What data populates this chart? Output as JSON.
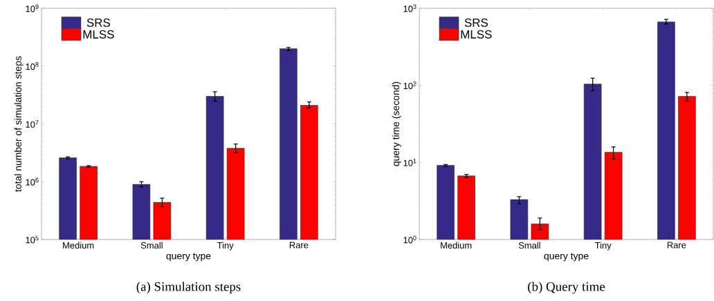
{
  "chart_data": [
    {
      "type": "bar",
      "title": "(a) Simulation steps",
      "xlabel": "query type",
      "ylabel": "total number of simulation steps",
      "categories": [
        "Medium",
        "Small",
        "Tiny",
        "Rare"
      ],
      "log": "y",
      "ylim": [
        100000,
        1000000000
      ],
      "yticks": [
        {
          "value": 100000,
          "label": "10$^{5}$"
        },
        {
          "value": 1000000,
          "label": "10$^{6}$"
        },
        {
          "value": 10000000,
          "label": "10$^{7}$"
        },
        {
          "value": 100000000,
          "label": "10$^{8}$"
        },
        {
          "value": 1000000000,
          "label": "10$^{9}$"
        }
      ],
      "legend": "top left",
      "series": [
        {
          "name": "SRS",
          "color": "#352a87",
          "values": [
            2600000,
            900000,
            30000000,
            200000000
          ],
          "errors": [
            [
              2500000,
              2700000
            ],
            [
              810000,
              1000000
            ],
            [
              24600000,
              36000000
            ],
            [
              185000000,
              210000000
            ]
          ]
        },
        {
          "name": "MLSS",
          "color": "#ff0000",
          "values": [
            1850000,
            440000,
            3800000,
            21000000
          ],
          "errors": [
            [
              1800000,
              1900000
            ],
            [
              370000,
              520000
            ],
            [
              3200000,
              4500000
            ],
            [
              19000000,
              24000000
            ]
          ]
        }
      ]
    },
    {
      "type": "bar",
      "title": "(b) Query time",
      "xlabel": "query type",
      "ylabel": "query time (second)",
      "categories": [
        "Medium",
        "Small",
        "Tiny",
        "Rare"
      ],
      "log": "y",
      "ylim": [
        1,
        1000
      ],
      "yticks": [
        {
          "value": 1,
          "label": "10$^{0}$"
        },
        {
          "value": 10,
          "label": "10$^{1}$"
        },
        {
          "value": 100,
          "label": "10$^{2}$"
        },
        {
          "value": 1000,
          "label": "10$^{3}$"
        }
      ],
      "legend": "top left",
      "series": [
        {
          "name": "SRS",
          "color": "#352a87",
          "values": [
            9.2,
            3.3,
            104,
            666
          ],
          "errors": [
            [
              8.9,
              9.4
            ],
            [
              2.9,
              3.6
            ],
            [
              85,
              124
            ],
            [
              626,
              718
            ]
          ]
        },
        {
          "name": "MLSS",
          "color": "#ff0000",
          "values": [
            6.7,
            1.6,
            13.6,
            72
          ],
          "errors": [
            [
              6.4,
              7.0
            ],
            [
              1.35,
              1.9
            ],
            [
              11.1,
              15.9
            ],
            [
              63,
              81
            ]
          ]
        }
      ]
    }
  ]
}
